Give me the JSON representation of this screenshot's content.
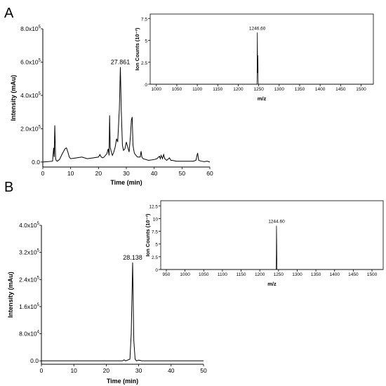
{
  "panels": {
    "a_label": "A",
    "b_label": "B"
  },
  "chart_data": [
    {
      "id": "A-chrom",
      "type": "line",
      "xlabel": "Time (min)",
      "ylabel": "Intensity (mAu)",
      "xlim": [
        0,
        60
      ],
      "ylim": [
        -0.3,
        8.0
      ],
      "x_ticks": [
        0,
        10,
        20,
        30,
        40,
        50,
        60
      ],
      "y_ticks": [
        {
          "value": 0,
          "label": "0.0"
        },
        {
          "value": 2,
          "label": "2.0x10",
          "exp": "5"
        },
        {
          "value": 4,
          "label": "4.0x10",
          "exp": "5"
        },
        {
          "value": 6,
          "label": "6.0x10",
          "exp": "5"
        },
        {
          "value": 8,
          "label": "8.0x10",
          "exp": "5"
        }
      ],
      "peak_label": {
        "text": "27.861",
        "x": 27.861,
        "y": 5.7
      },
      "x": [
        0,
        3.5,
        3.9,
        4.1,
        4.3,
        4.6,
        4.8,
        5.2,
        6,
        7,
        8,
        8.5,
        9,
        9.5,
        10,
        12,
        14,
        16,
        18,
        20,
        20.5,
        21,
        21.5,
        22,
        23,
        23.5,
        23.8,
        24.0,
        24.2,
        24.6,
        25,
        25.5,
        26,
        26.5,
        26.9,
        27.2,
        27.5,
        27.86,
        28.2,
        28.6,
        29,
        29.5,
        30,
        30.5,
        31,
        31.5,
        31.8,
        32.1,
        32.4,
        32.8,
        33,
        34,
        35,
        35.3,
        35.6,
        36,
        38,
        40,
        41,
        41.9,
        42.2,
        42.5,
        43,
        43.4,
        43.8,
        44.5,
        45.5,
        46,
        46.5,
        48,
        50,
        52,
        54,
        55,
        55.6,
        56,
        57,
        58,
        59,
        60
      ],
      "y": [
        0.0,
        0.05,
        0.85,
        0.3,
        2.2,
        0.2,
        0.1,
        0.05,
        0.15,
        0.5,
        0.8,
        0.85,
        0.6,
        0.3,
        0.2,
        0.25,
        0.3,
        0.2,
        0.25,
        0.3,
        0.45,
        0.3,
        0.25,
        0.3,
        0.5,
        0.8,
        0.4,
        2.8,
        0.9,
        0.6,
        0.4,
        0.6,
        0.9,
        1.4,
        1.2,
        2.2,
        3.2,
        5.7,
        3.0,
        1.0,
        0.7,
        0.8,
        1.2,
        0.9,
        0.6,
        1.6,
        2.5,
        2.7,
        1.0,
        0.6,
        0.5,
        0.3,
        0.3,
        0.65,
        0.3,
        0.2,
        0.1,
        0.15,
        0.2,
        0.35,
        0.2,
        0.4,
        0.2,
        0.45,
        0.2,
        0.1,
        0.25,
        0.1,
        0.1,
        0.05,
        0.05,
        0.05,
        0.05,
        0.1,
        0.55,
        0.1,
        0.05,
        0.02,
        0.05,
        0.0
      ]
    },
    {
      "id": "A-ms",
      "type": "line",
      "xlabel": "m/z",
      "ylabel": "Ion Counts (10⁻³)",
      "xlim": [
        985,
        1530
      ],
      "ylim": [
        0,
        8
      ],
      "x_ticks": [
        1000,
        1050,
        1100,
        1150,
        1200,
        1250,
        1300,
        1350,
        1400,
        1450,
        1500
      ],
      "y_ticks": [
        0,
        2.5,
        5,
        7.5
      ],
      "y_tick_labels": [
        "0",
        "2.5",
        "5",
        "7.5"
      ],
      "peak_label": {
        "text": "1246.60",
        "x": 1246.6,
        "y": 5.9
      },
      "x": [
        985,
        1245.8,
        1246.3,
        1246.6,
        1247.0,
        1247.4,
        1247.8,
        1248.2,
        1248.6,
        1249.0,
        1530
      ],
      "y": [
        0,
        0,
        2.5,
        5.9,
        3.6,
        1.3,
        3.3,
        2.4,
        0.6,
        0,
        0
      ]
    },
    {
      "id": "B-chrom",
      "type": "line",
      "xlabel": "Time (min)",
      "ylabel": "Intensity (mAu)",
      "xlim": [
        0,
        50
      ],
      "ylim": [
        -0.1,
        4.0
      ],
      "x_ticks": [
        0,
        10,
        20,
        30,
        40,
        50
      ],
      "y_ticks": [
        {
          "value": 0,
          "label": "0.0"
        },
        {
          "value": 0.8,
          "label": "8.0x10",
          "exp": "4"
        },
        {
          "value": 1.6,
          "label": "1.6x10",
          "exp": "5"
        },
        {
          "value": 2.4,
          "label": "2.4x10",
          "exp": "5"
        },
        {
          "value": 3.2,
          "label": "3.2x10",
          "exp": "5"
        },
        {
          "value": 4.0,
          "label": "4.0x10",
          "exp": "5"
        }
      ],
      "peak_label": {
        "text": "28.138",
        "x": 28.138,
        "y": 2.9
      },
      "x": [
        0,
        20,
        25,
        25.5,
        26,
        27.3,
        27.7,
        28.138,
        28.5,
        28.9,
        29.3,
        30,
        31,
        40,
        50
      ],
      "y": [
        0.0,
        0.0,
        0.0,
        0.03,
        0.0,
        0.05,
        0.8,
        2.9,
        0.6,
        0.05,
        0.0,
        0.02,
        0.0,
        0.0,
        0.0
      ]
    },
    {
      "id": "B-ms",
      "type": "line",
      "xlabel": "m/z",
      "ylabel": "Ion Counts (10⁻³)",
      "xlim": [
        935,
        1530
      ],
      "ylim": [
        0,
        13.5
      ],
      "x_ticks": [
        950,
        1000,
        1050,
        1100,
        1150,
        1200,
        1250,
        1300,
        1350,
        1400,
        1450,
        1500
      ],
      "y_ticks": [
        0,
        2.5,
        5,
        7.5,
        10,
        12.5
      ],
      "y_tick_labels": [
        "0",
        "2.5",
        "5",
        "7.5",
        "10",
        "12.5"
      ],
      "peak_label": {
        "text": "1244.60",
        "x": 1244.6,
        "y": 8.6
      },
      "x": [
        935,
        1243.9,
        1244.3,
        1244.6,
        1244.9,
        1245.3,
        1245.7,
        1246.1,
        1530
      ],
      "y": [
        0,
        0,
        3.0,
        8.6,
        6.8,
        4.5,
        1.5,
        0,
        0
      ]
    }
  ]
}
